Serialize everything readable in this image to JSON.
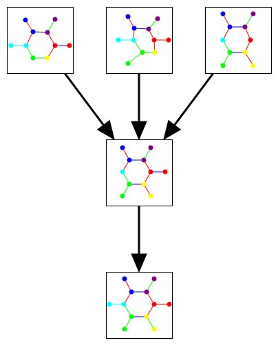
{
  "diagram": {
    "nodes": [
      {
        "id": "mol-1",
        "atoms": [
          {
            "id": "a",
            "color": "#0000ff"
          },
          {
            "id": "b",
            "color": "#800080"
          },
          {
            "id": "c",
            "color": "#0000ff"
          },
          {
            "id": "d",
            "color": "#800080"
          },
          {
            "id": "e",
            "color": "#00ffff"
          },
          {
            "id": "f",
            "color": "#00ffff"
          },
          {
            "id": "g",
            "color": "#ff0000"
          },
          {
            "id": "h",
            "color": "#ff0000"
          },
          {
            "id": "i",
            "color": "#00ff00"
          },
          {
            "id": "j",
            "color": "#ffff00"
          }
        ],
        "bonds": [
          {
            "from": "a",
            "to": "c",
            "color": "#ff0000"
          },
          {
            "from": "b",
            "to": "d",
            "color": "#00ff00"
          },
          {
            "from": "c",
            "to": "d",
            "color": "#0000ff"
          },
          {
            "from": "c",
            "to": "f",
            "color": "#ff0000"
          },
          {
            "from": "e",
            "to": "f",
            "color": "#00ffff"
          },
          {
            "from": "d",
            "to": "g",
            "color": "#ff0000"
          },
          {
            "from": "g",
            "to": "h",
            "color": "#0000ff"
          },
          {
            "from": "f",
            "to": "i",
            "color": "#00ff00"
          },
          {
            "from": "i",
            "to": "j",
            "color": "#00ff00"
          },
          {
            "from": "g",
            "to": "j",
            "color": "#ff0000"
          }
        ]
      },
      {
        "id": "mol-2",
        "atoms": [
          {
            "id": "a",
            "color": "#0000ff"
          },
          {
            "id": "b",
            "color": "#800080"
          },
          {
            "id": "c",
            "color": "#0000ff"
          },
          {
            "id": "d",
            "color": "#800080"
          },
          {
            "id": "e",
            "color": "#00ffff"
          },
          {
            "id": "f",
            "color": "#00ffff"
          },
          {
            "id": "g",
            "color": "#ff0000"
          },
          {
            "id": "h",
            "color": "#ff0000"
          },
          {
            "id": "i",
            "color": "#00ff00"
          },
          {
            "id": "j",
            "color": "#ffff00"
          },
          {
            "id": "k",
            "color": "#00ff00"
          }
        ],
        "bonds": [
          {
            "from": "a",
            "to": "c",
            "color": "#ff0000"
          },
          {
            "from": "b",
            "to": "d",
            "color": "#00ff00"
          },
          {
            "from": "c",
            "to": "d",
            "color": "#0000ff"
          },
          {
            "from": "c",
            "to": "f",
            "color": "#ff0000"
          },
          {
            "from": "e",
            "to": "f",
            "color": "#00ffff"
          },
          {
            "from": "d",
            "to": "g",
            "color": "#ff0000"
          },
          {
            "from": "g",
            "to": "h",
            "color": "#ff0000"
          },
          {
            "from": "f",
            "to": "i",
            "color": "#00ff00"
          },
          {
            "from": "i",
            "to": "j",
            "color": "#00ff00"
          },
          {
            "from": "g",
            "to": "j",
            "color": "#ff0000"
          },
          {
            "from": "i",
            "to": "k",
            "color": "#00ff00"
          }
        ]
      },
      {
        "id": "mol-3",
        "atoms": [
          {
            "id": "a",
            "color": "#0000ff"
          },
          {
            "id": "b",
            "color": "#800080"
          },
          {
            "id": "c",
            "color": "#0000ff"
          },
          {
            "id": "d",
            "color": "#800080"
          },
          {
            "id": "e",
            "color": "#00ffff"
          },
          {
            "id": "f",
            "color": "#00ffff"
          },
          {
            "id": "g",
            "color": "#ff0000"
          },
          {
            "id": "i",
            "color": "#00ff00"
          },
          {
            "id": "j",
            "color": "#ffff00"
          },
          {
            "id": "k",
            "color": "#00ff00"
          },
          {
            "id": "l",
            "color": "#ffff00"
          }
        ],
        "bonds": [
          {
            "from": "a",
            "to": "c",
            "color": "#ff0000"
          },
          {
            "from": "b",
            "to": "d",
            "color": "#00ff00"
          },
          {
            "from": "c",
            "to": "d",
            "color": "#0000ff"
          },
          {
            "from": "c",
            "to": "e",
            "color": "#ff0000"
          },
          {
            "from": "e",
            "to": "f",
            "color": "#00ffff"
          },
          {
            "from": "d",
            "to": "g",
            "color": "#ff0000"
          },
          {
            "from": "f",
            "to": "i",
            "color": "#00ff00"
          },
          {
            "from": "i",
            "to": "j",
            "color": "#0000ff"
          },
          {
            "from": "g",
            "to": "j",
            "color": "#ff0000"
          },
          {
            "from": "i",
            "to": "k",
            "color": "#00ff00"
          },
          {
            "from": "j",
            "to": "l",
            "color": "#ff0000"
          }
        ]
      },
      {
        "id": "mol-merged",
        "atoms": [
          {
            "id": "a",
            "color": "#0000ff"
          },
          {
            "id": "b",
            "color": "#800080"
          },
          {
            "id": "c",
            "color": "#0000ff"
          },
          {
            "id": "d",
            "color": "#800080"
          },
          {
            "id": "f",
            "color": "#00ffff"
          },
          {
            "id": "g",
            "color": "#ff0000"
          },
          {
            "id": "h",
            "color": "#ff0000"
          },
          {
            "id": "i",
            "color": "#00ff00"
          },
          {
            "id": "j",
            "color": "#ffff00"
          },
          {
            "id": "k",
            "color": "#00ff00"
          },
          {
            "id": "l",
            "color": "#ffff00"
          }
        ],
        "bonds": [
          {
            "from": "a",
            "to": "c",
            "color": "#ff0000"
          },
          {
            "from": "b",
            "to": "d",
            "color": "#00ff00"
          },
          {
            "from": "c",
            "to": "d",
            "color": "#0000ff"
          },
          {
            "from": "c",
            "to": "f",
            "color": "#ff0000"
          },
          {
            "from": "d",
            "to": "g",
            "color": "#ff0000"
          },
          {
            "from": "g",
            "to": "h",
            "color": "#0000ff"
          },
          {
            "from": "f",
            "to": "i",
            "color": "#00ff00"
          },
          {
            "from": "i",
            "to": "j",
            "color": "#0000ff"
          },
          {
            "from": "g",
            "to": "j",
            "color": "#ff0000"
          },
          {
            "from": "i",
            "to": "k",
            "color": "#00ff00"
          },
          {
            "from": "j",
            "to": "l",
            "color": "#ff0000"
          }
        ]
      },
      {
        "id": "mol-result",
        "atoms": [
          {
            "id": "a",
            "color": "#0000ff"
          },
          {
            "id": "b",
            "color": "#800080"
          },
          {
            "id": "c",
            "color": "#0000ff"
          },
          {
            "id": "d",
            "color": "#800080"
          },
          {
            "id": "e",
            "color": "#00ffff"
          },
          {
            "id": "f",
            "color": "#00ffff"
          },
          {
            "id": "g",
            "color": "#ff0000"
          },
          {
            "id": "h",
            "color": "#ff0000"
          },
          {
            "id": "i",
            "color": "#00ff00"
          },
          {
            "id": "j",
            "color": "#ffff00"
          },
          {
            "id": "k",
            "color": "#00ff00"
          },
          {
            "id": "l",
            "color": "#ffff00"
          }
        ],
        "bonds": [
          {
            "from": "a",
            "to": "c",
            "color": "#ff0000"
          },
          {
            "from": "b",
            "to": "d",
            "color": "#00ff00"
          },
          {
            "from": "c",
            "to": "d",
            "color": "#0000ff"
          },
          {
            "from": "c",
            "to": "f",
            "color": "#ff0000"
          },
          {
            "from": "e",
            "to": "f",
            "color": "#00ffff"
          },
          {
            "from": "d",
            "to": "g",
            "color": "#ff0000"
          },
          {
            "from": "g",
            "to": "h",
            "color": "#ff0000"
          },
          {
            "from": "f",
            "to": "i",
            "color": "#00ff00"
          },
          {
            "from": "i",
            "to": "j",
            "color": "#0000ff"
          },
          {
            "from": "g",
            "to": "j",
            "color": "#ff0000"
          },
          {
            "from": "i",
            "to": "k",
            "color": "#00ff00"
          },
          {
            "from": "j",
            "to": "l",
            "color": "#00ff00"
          }
        ]
      }
    ],
    "edges": [
      {
        "from": "mol-1",
        "to": "mol-merged"
      },
      {
        "from": "mol-2",
        "to": "mol-merged"
      },
      {
        "from": "mol-3",
        "to": "mol-merged"
      },
      {
        "from": "mol-merged",
        "to": "mol-result"
      }
    ]
  }
}
